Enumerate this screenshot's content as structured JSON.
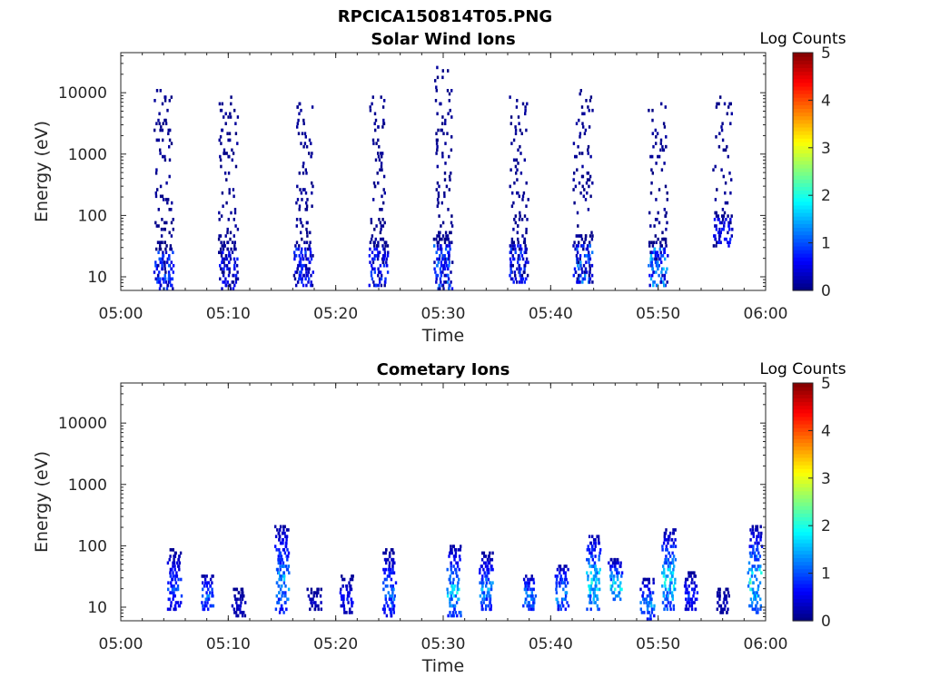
{
  "figure_title": "RPCICA150814T05.PNG",
  "colormap": "jet",
  "chart_data": [
    {
      "type": "heatmap",
      "title": "Solar Wind Ions",
      "xlabel": "Time",
      "ylabel": "Energy (eV)",
      "x_range": [
        "05:00",
        "06:00"
      ],
      "x_ticks": [
        "05:00",
        "05:10",
        "05:20",
        "05:30",
        "05:40",
        "05:50",
        "06:00"
      ],
      "y_scale": "log",
      "y_range_ev": [
        6,
        45000
      ],
      "y_ticks": [
        10,
        100,
        1000,
        10000
      ],
      "y_tick_labels": [
        "10",
        "100",
        "1000",
        "10000"
      ],
      "colorbar": {
        "label": "Log Counts",
        "min": 0,
        "max": 5,
        "ticks": [
          "0",
          "1",
          "2",
          "3",
          "4",
          "5"
        ]
      },
      "bursts": [
        {
          "t": "05:04",
          "emin": 6,
          "emax": 12000,
          "peak_low_energy": 0.8
        },
        {
          "t": "05:10",
          "emin": 6,
          "emax": 9000,
          "peak_low_energy": 0.6
        },
        {
          "t": "05:17",
          "emin": 7,
          "emax": 8000,
          "peak_low_energy": 0.7
        },
        {
          "t": "05:24",
          "emin": 7,
          "emax": 9000,
          "peak_low_energy": 0.7
        },
        {
          "t": "05:30",
          "emin": 6,
          "emax": 26000,
          "peak_low_energy": 0.9
        },
        {
          "t": "05:37",
          "emin": 8,
          "emax": 9000,
          "peak_low_energy": 0.7
        },
        {
          "t": "05:43",
          "emin": 8,
          "emax": 13000,
          "peak_low_energy": 1.0
        },
        {
          "t": "05:50",
          "emin": 7,
          "emax": 9000,
          "peak_low_energy": 1.2
        },
        {
          "t": "05:56",
          "emin": 30,
          "emax": 9000,
          "peak_low_energy": 0.6
        }
      ]
    },
    {
      "type": "heatmap",
      "title": "Cometary Ions",
      "xlabel": "Time",
      "ylabel": "Energy (eV)",
      "x_range": [
        "05:00",
        "06:00"
      ],
      "x_ticks": [
        "05:00",
        "05:10",
        "05:20",
        "05:30",
        "05:40",
        "05:50",
        "06:00"
      ],
      "y_scale": "log",
      "y_range_ev": [
        6,
        45000
      ],
      "y_ticks": [
        10,
        100,
        1000,
        10000
      ],
      "y_tick_labels": [
        "10",
        "100",
        "1000",
        "10000"
      ],
      "colorbar": {
        "label": "Log Counts",
        "min": 0,
        "max": 5,
        "ticks": [
          "0",
          "1",
          "2",
          "3",
          "4",
          "5"
        ]
      },
      "bursts": [
        {
          "t": "05:05",
          "emin": 9,
          "emax": 90,
          "peak": 1.2
        },
        {
          "t": "05:08",
          "emin": 9,
          "emax": 35,
          "peak": 1.6
        },
        {
          "t": "05:11",
          "emin": 7,
          "emax": 22,
          "peak": 0.5
        },
        {
          "t": "05:15",
          "emin": 8,
          "emax": 230,
          "peak": 1.8
        },
        {
          "t": "05:18",
          "emin": 9,
          "emax": 22,
          "peak": 0.4
        },
        {
          "t": "05:21",
          "emin": 8,
          "emax": 35,
          "peak": 0.8
        },
        {
          "t": "05:25",
          "emin": 7,
          "emax": 90,
          "peak": 1.5
        },
        {
          "t": "05:31",
          "emin": 7,
          "emax": 100,
          "peak": 2.1
        },
        {
          "t": "05:34",
          "emin": 9,
          "emax": 80,
          "peak": 1.7
        },
        {
          "t": "05:38",
          "emin": 9,
          "emax": 35,
          "peak": 1.8
        },
        {
          "t": "05:41",
          "emin": 9,
          "emax": 50,
          "peak": 1.8
        },
        {
          "t": "05:44",
          "emin": 9,
          "emax": 160,
          "peak": 2.3
        },
        {
          "t": "05:46",
          "emin": 12,
          "emax": 60,
          "peak": 2.4
        },
        {
          "t": "05:49",
          "emin": 6,
          "emax": 30,
          "peak": 1.7
        },
        {
          "t": "05:51",
          "emin": 9,
          "emax": 190,
          "peak": 2.3
        },
        {
          "t": "05:53",
          "emin": 9,
          "emax": 40,
          "peak": 1.0
        },
        {
          "t": "05:56",
          "emin": 8,
          "emax": 22,
          "peak": 0.4
        },
        {
          "t": "05:59",
          "emin": 8,
          "emax": 210,
          "peak": 2.4
        }
      ]
    }
  ]
}
